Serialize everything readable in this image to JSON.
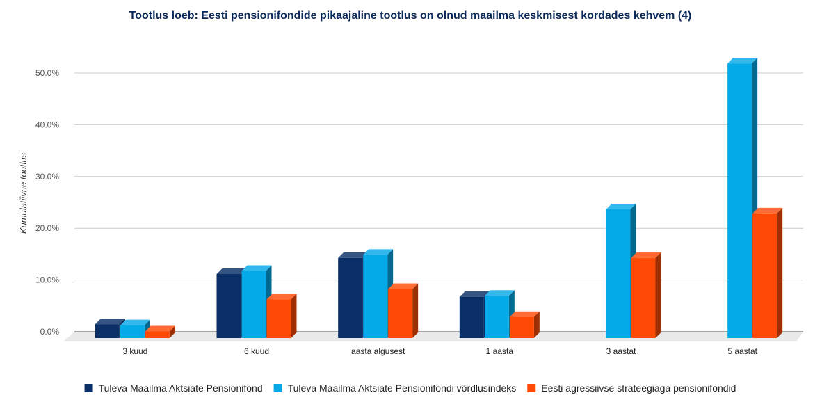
{
  "chart_data": {
    "type": "bar",
    "title": "Tootlus loeb: Eesti pensionifondide pikaajaline tootlus on olnud maailma keskmisest kordades kehvem (4)",
    "xlabel": "",
    "ylabel": "Kumulatiivne tootlus",
    "categories": [
      "3 kuud",
      "6 kuud",
      "aasta algusest",
      "1 aasta",
      "3 aastat",
      "5 aastat"
    ],
    "series": [
      {
        "name": "Tuleva Maailma Aktsiate Pensionifond",
        "color": "#0a2f66",
        "values": [
          2.0,
          11.7,
          14.8,
          7.3,
          null,
          null
        ]
      },
      {
        "name": "Tuleva Maailma Aktsiate Pensionifondi võrdlusindeks",
        "color": "#04a9e8",
        "values": [
          1.8,
          12.3,
          15.4,
          7.5,
          24.2,
          52.4
        ]
      },
      {
        "name": "Eesti agressiivse strateegiaga pensionifondid",
        "color": "#ff4a05",
        "values": [
          0.6,
          6.8,
          8.8,
          3.4,
          14.8,
          23.4
        ]
      }
    ],
    "ylim": [
      0,
      50
    ],
    "yticks": [
      "0.0%",
      "10.0%",
      "20.0%",
      "30.0%",
      "40.0%",
      "50.0%"
    ],
    "grid": true,
    "legend_position": "bottom",
    "style": "3d"
  }
}
